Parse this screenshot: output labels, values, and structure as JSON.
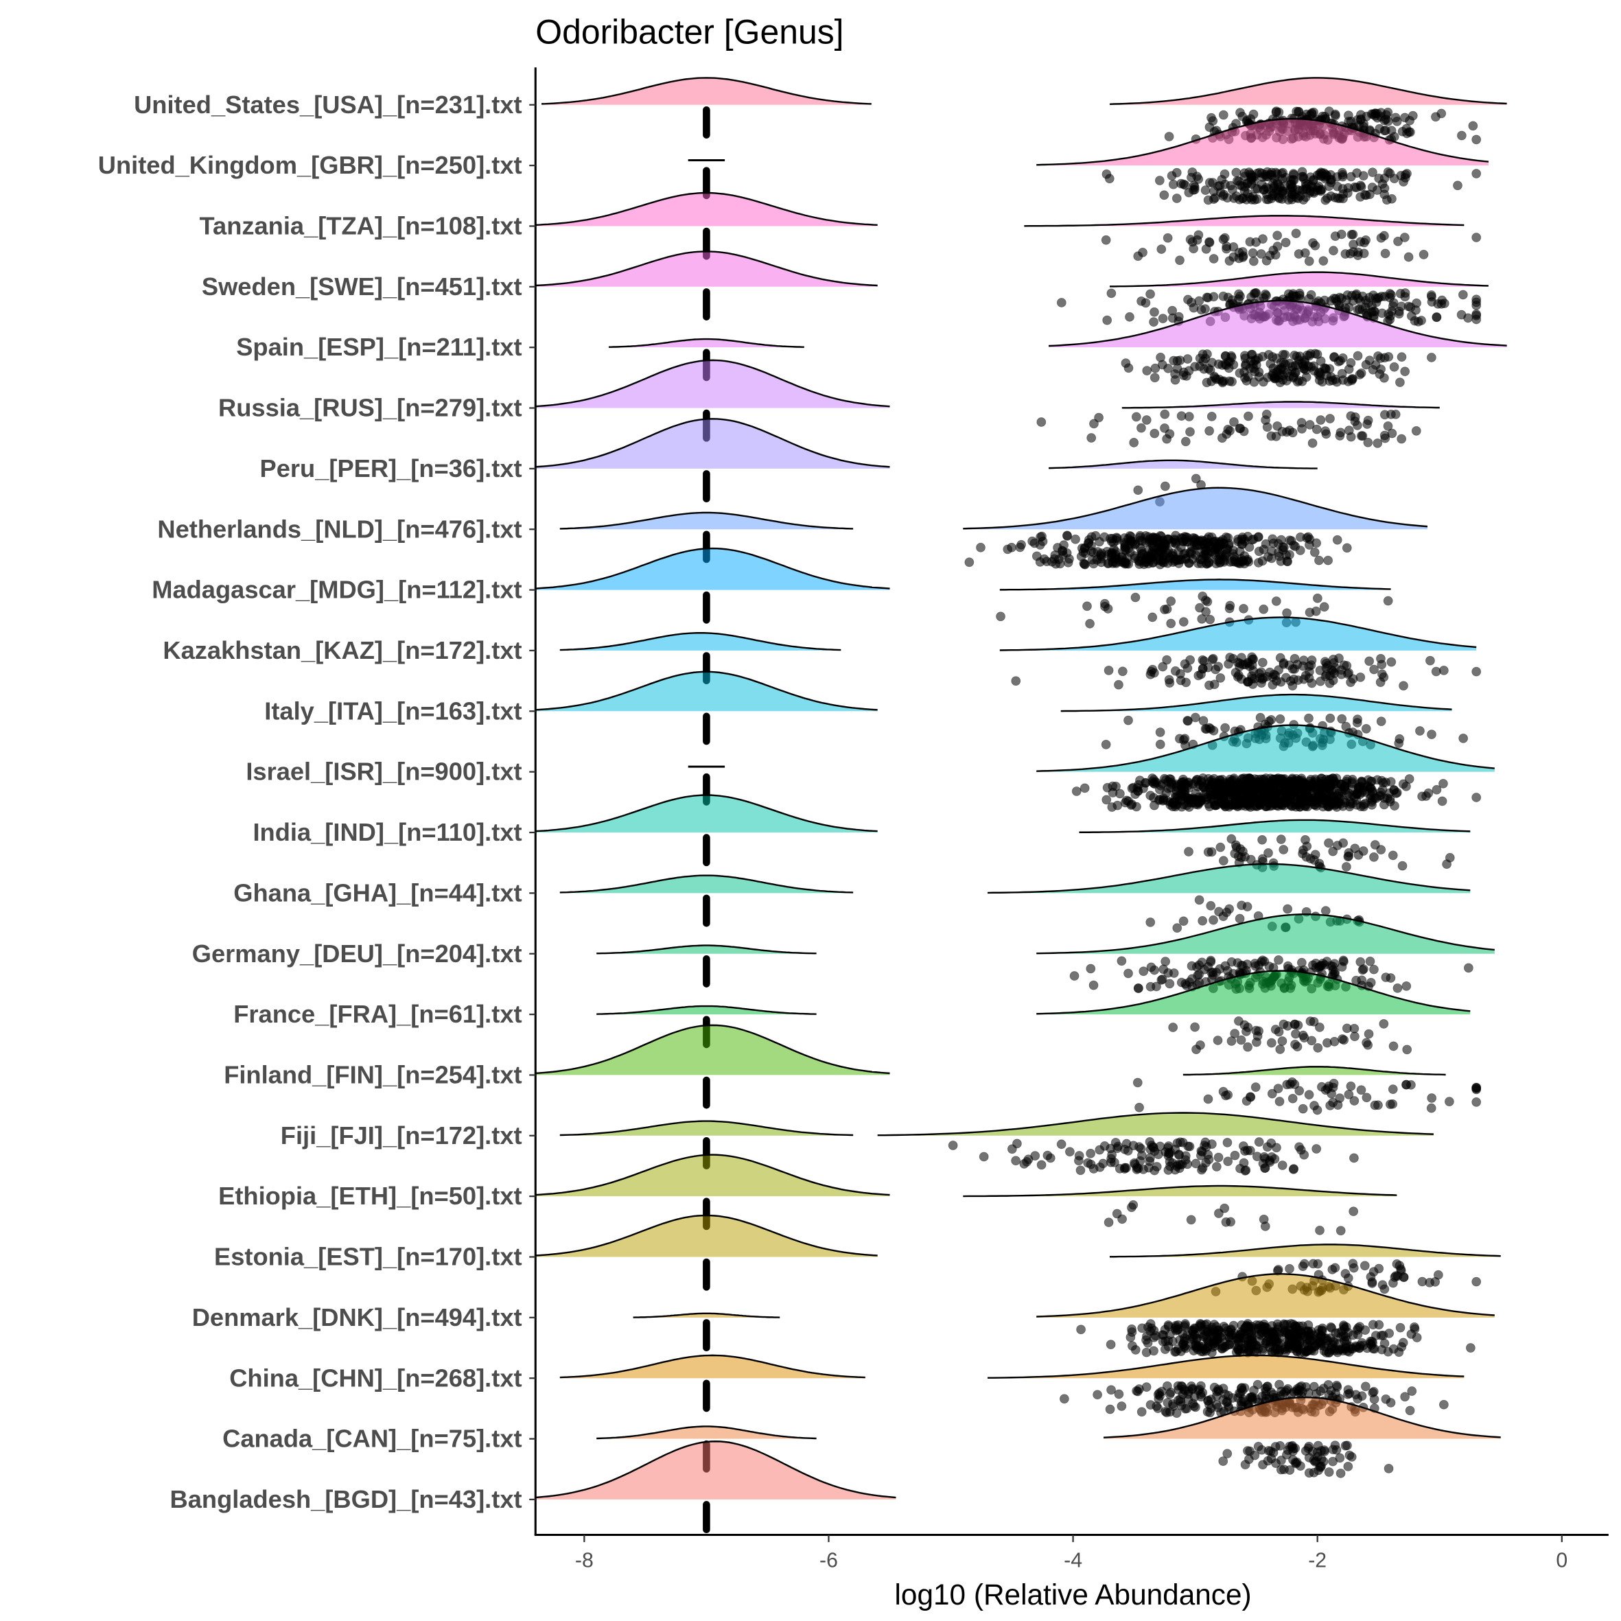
{
  "chart_data": {
    "type": "raincloud",
    "title": "Odoribacter [Genus]",
    "xlabel": "log10 (Relative Abundance)",
    "ylabel": "",
    "xlim": [
      -8.4,
      0.4
    ],
    "xticks": [
      -8,
      -6,
      -4,
      -2,
      0
    ],
    "xtick_labels": [
      "-8",
      "-6",
      "-4",
      "-2",
      "0"
    ],
    "grid": false,
    "legend": "none",
    "zero_value": -7,
    "categories": [
      "United_States_[USA]_[n=231].txt",
      "United_Kingdom_[GBR]_[n=250].txt",
      "Tanzania_[TZA]_[n=108].txt",
      "Sweden_[SWE]_[n=451].txt",
      "Spain_[ESP]_[n=211].txt",
      "Russia_[RUS]_[n=279].txt",
      "Peru_[PER]_[n=36].txt",
      "Netherlands_[NLD]_[n=476].txt",
      "Madagascar_[MDG]_[n=112].txt",
      "Kazakhstan_[KAZ]_[n=172].txt",
      "Italy_[ITA]_[n=163].txt",
      "Israel_[ISR]_[n=900].txt",
      "India_[IND]_[n=110].txt",
      "Ghana_[GHA]_[n=44].txt",
      "Germany_[DEU]_[n=204].txt",
      "France_[FRA]_[n=61].txt",
      "Finland_[FIN]_[n=254].txt",
      "Fiji_[FJI]_[n=172].txt",
      "Ethiopia_[ETH]_[n=50].txt",
      "Estonia_[EST]_[n=170].txt",
      "Denmark_[DNK]_[n=494].txt",
      "China_[CHN]_[n=268].txt",
      "Canada_[CAN]_[n=75].txt",
      "Bangladesh_[BGD]_[n=43].txt"
    ],
    "series": [
      {
        "left": [
          -8.35,
          -5.65,
          0.26
        ],
        "right": [
          -3.7,
          -0.45,
          -2.0,
          0.26
        ],
        "pts": [
          -2.0,
          0.5,
          200
        ]
      },
      {
        "left": null,
        "right": [
          -4.3,
          -0.6,
          -2.2,
          0.45
        ],
        "pts": [
          -2.2,
          0.45,
          230
        ]
      },
      {
        "left": [
          -8.4,
          -5.6,
          0.32
        ],
        "right": [
          -4.4,
          -0.8,
          -2.3,
          0.1
        ],
        "pts": [
          -2.4,
          0.65,
          70
        ]
      },
      {
        "left": [
          -8.4,
          -5.6,
          0.34
        ],
        "right": [
          -3.7,
          -0.6,
          -2.0,
          0.14
        ],
        "pts": [
          -2.1,
          0.7,
          220
        ]
      },
      {
        "left": [
          -7.8,
          -6.2,
          0.08
        ],
        "right": [
          -4.2,
          -0.45,
          -2.3,
          0.45
        ],
        "pts": [
          -2.4,
          0.55,
          190
        ]
      },
      {
        "left": [
          -8.4,
          -5.5,
          0.46
        ],
        "right": [
          -3.6,
          -1.0,
          -2.2,
          0.06
        ],
        "pts": [
          -2.4,
          0.75,
          70
        ]
      },
      {
        "left": [
          -8.4,
          -5.5,
          0.48
        ],
        "right": [
          -4.2,
          -2.0,
          -3.2,
          0.08
        ],
        "pts": [
          -3.2,
          0.4,
          5
        ]
      },
      {
        "left": [
          -8.2,
          -5.8,
          0.16
        ],
        "right": [
          -4.9,
          -1.1,
          -2.8,
          0.4
        ],
        "pts": [
          -3.2,
          0.55,
          400
        ]
      },
      {
        "left": [
          -8.4,
          -5.5,
          0.4
        ],
        "right": [
          -4.6,
          -1.4,
          -2.8,
          0.1
        ],
        "pts": [
          -2.9,
          0.6,
          35
        ]
      },
      {
        "left": [
          -8.2,
          -5.9,
          0.17
        ],
        "right": [
          -4.6,
          -0.7,
          -2.3,
          0.32
        ],
        "pts": [
          -2.4,
          0.55,
          140
        ]
      },
      {
        "left": [
          -8.4,
          -5.6,
          0.38
        ],
        "right": [
          -4.1,
          -0.9,
          -2.2,
          0.16
        ],
        "pts": [
          -2.3,
          0.55,
          90
        ]
      },
      {
        "left": null,
        "right": [
          -4.3,
          -0.55,
          -2.2,
          0.45
        ],
        "pts": [
          -2.4,
          0.5,
          800
        ]
      },
      {
        "left": [
          -8.4,
          -5.6,
          0.36
        ],
        "right": [
          -3.95,
          -0.75,
          -2.1,
          0.12
        ],
        "pts": [
          -2.2,
          0.5,
          55
        ]
      },
      {
        "left": [
          -8.2,
          -5.8,
          0.17
        ],
        "right": [
          -4.7,
          -0.75,
          -2.4,
          0.28
        ],
        "pts": [
          -2.6,
          0.6,
          30
        ]
      },
      {
        "left": [
          -7.9,
          -6.1,
          0.08
        ],
        "right": [
          -4.3,
          -0.55,
          -2.1,
          0.38
        ],
        "pts": [
          -2.4,
          0.6,
          170
        ]
      },
      {
        "left": [
          -7.9,
          -6.1,
          0.08
        ],
        "right": [
          -4.3,
          -0.75,
          -2.3,
          0.42
        ],
        "pts": [
          -2.2,
          0.4,
          50
        ]
      },
      {
        "left": [
          -8.4,
          -5.5,
          0.48
        ],
        "right": [
          -3.1,
          -0.95,
          -2.0,
          0.08
        ],
        "pts": [
          -2.0,
          0.55,
          55
        ]
      },
      {
        "left": [
          -8.2,
          -5.8,
          0.14
        ],
        "right": [
          -5.6,
          -1.05,
          -3.1,
          0.22
        ],
        "pts": [
          -3.2,
          0.6,
          140
        ]
      },
      {
        "left": [
          -8.4,
          -5.5,
          0.4
        ],
        "right": [
          -4.9,
          -1.35,
          -2.8,
          0.1
        ],
        "pts": [
          -2.9,
          0.7,
          15
        ]
      },
      {
        "left": [
          -8.4,
          -5.6,
          0.4
        ],
        "right": [
          -3.7,
          -0.5,
          -1.9,
          0.12
        ],
        "pts": [
          -1.7,
          0.5,
          60
        ]
      },
      {
        "left": [
          -7.6,
          -6.4,
          0.04
        ],
        "right": [
          -4.3,
          -0.55,
          -2.3,
          0.42
        ],
        "pts": [
          -2.4,
          0.5,
          450
        ]
      },
      {
        "left": [
          -8.2,
          -5.7,
          0.22
        ],
        "right": [
          -4.7,
          -0.8,
          -2.5,
          0.22
        ],
        "pts": [
          -2.5,
          0.55,
          220
        ]
      },
      {
        "left": [
          -7.9,
          -6.1,
          0.12
        ],
        "right": [
          -3.75,
          -0.5,
          -2.1,
          0.4
        ],
        "pts": [
          -2.1,
          0.3,
          70
        ]
      },
      {
        "left": [
          -8.4,
          -5.45,
          0.56
        ],
        "right": null,
        "pts": null
      }
    ]
  }
}
